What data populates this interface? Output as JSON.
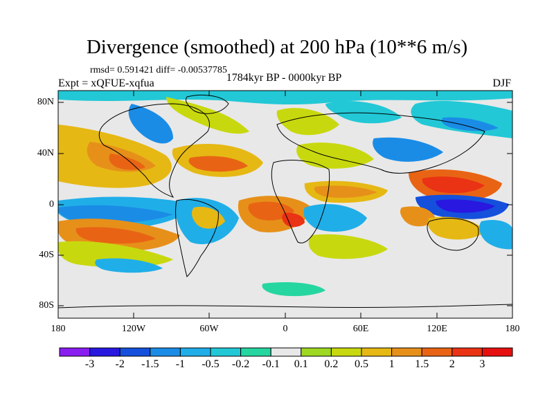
{
  "title": "Divergence (smoothed) at 200 hPa (10**6 m/s)",
  "stats": "rmsd= 0.591421 diff= -0.00537785",
  "experiment": "Expt = xQFUE-xqfua",
  "period": "1784kyr BP - 0000kyr BP",
  "season": "DJF",
  "map": {
    "lat_ticks": [
      "80N",
      "40N",
      "0",
      "40S",
      "80S"
    ],
    "lon_ticks": [
      "180",
      "120W",
      "60W",
      "0",
      "60E",
      "120E",
      "180"
    ]
  },
  "colorbar": {
    "labels": [
      "-3",
      "-2",
      "-1.5",
      "-1",
      "-0.5",
      "-0.2",
      "-0.1",
      "0.1",
      "0.2",
      "0.5",
      "1",
      "1.5",
      "2",
      "3"
    ],
    "colors": [
      "#8a1ef0",
      "#2818e0",
      "#1450dc",
      "#1a8ce6",
      "#20aee8",
      "#22c8d6",
      "#26d6a0",
      "#e8e8e8",
      "#9ed822",
      "#c8d80e",
      "#e6b814",
      "#e6901a",
      "#e86414",
      "#ea3214",
      "#e61010"
    ]
  }
}
